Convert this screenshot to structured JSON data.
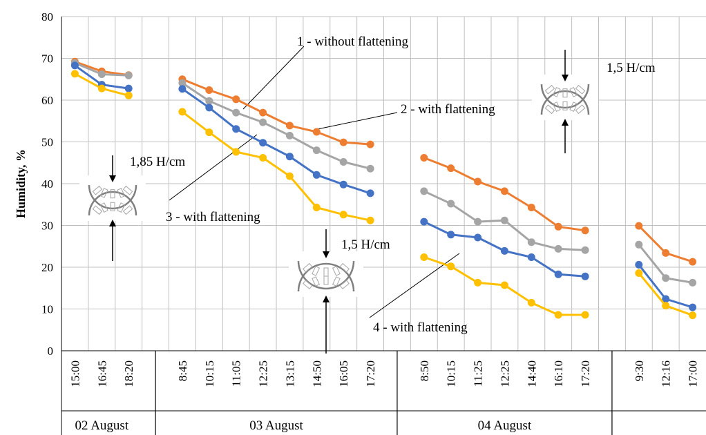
{
  "chart_data": {
    "type": "line",
    "ylabel": "Humidity, %",
    "ylim": [
      0,
      80
    ],
    "yticks": [
      0,
      10,
      20,
      30,
      40,
      50,
      60,
      70,
      80
    ],
    "grid": true,
    "groups": [
      {
        "day": "02 August",
        "times": [
          "15:00",
          "16:45",
          "18:20"
        ]
      },
      {
        "day": "03 August",
        "times": [
          "8:45",
          "10:15",
          "11:05",
          "12:25",
          "13:15",
          "14:50",
          "16:05",
          "17:20"
        ]
      },
      {
        "day": "04 August",
        "times": [
          "8:50",
          "10:15",
          "11:25",
          "12:25",
          "14:40",
          "16:10",
          "17:20"
        ]
      },
      {
        "day": "",
        "times": [
          "9:30",
          "12:16",
          "17:00"
        ]
      }
    ],
    "series": [
      {
        "color": "#ED7D31",
        "groups": [
          [
            69.2,
            66.9,
            66.0
          ],
          [
            65.0,
            62.4,
            60.2,
            57.0,
            53.9,
            52.4,
            49.9,
            49.4
          ],
          [
            46.2,
            43.7,
            40.5,
            38.2,
            34.3,
            29.7,
            28.8
          ],
          [
            29.9,
            23.4,
            21.3
          ]
        ]
      },
      {
        "color": "#A5A5A5",
        "groups": [
          [
            68.9,
            66.2,
            65.9
          ],
          [
            64.1,
            59.8,
            57.0,
            54.7,
            51.5,
            48.0,
            45.2,
            43.6
          ],
          [
            38.2,
            35.2,
            30.9,
            31.2,
            26.0,
            24.4,
            24.1
          ],
          [
            25.4,
            17.4,
            16.3
          ]
        ]
      },
      {
        "color": "#4472C4",
        "groups": [
          [
            68.3,
            63.7,
            62.8
          ],
          [
            62.7,
            58.2,
            53.1,
            49.8,
            46.5,
            42.1,
            39.8,
            37.7
          ],
          [
            30.9,
            27.8,
            27.1,
            23.9,
            22.4,
            18.3,
            17.8
          ],
          [
            20.6,
            12.4,
            10.4
          ]
        ]
      },
      {
        "color": "#FFC000",
        "groups": [
          [
            66.3,
            62.8,
            61.1
          ],
          [
            57.2,
            52.3,
            47.6,
            46.2,
            41.8,
            34.3,
            32.6,
            31.2
          ],
          [
            22.4,
            20.2,
            16.3,
            15.7,
            11.5,
            8.6,
            8.6
          ],
          [
            18.6,
            10.8,
            8.5
          ]
        ]
      }
    ],
    "annotations": [
      {
        "text": "1 - without flattening"
      },
      {
        "text": "2 - with flattening"
      },
      {
        "text": "3 - with flattening"
      },
      {
        "text": "4 - with flattening"
      },
      {
        "text": "1,85 H/cm"
      },
      {
        "text": "1,5 H/cm"
      },
      {
        "text": "1,5 H/cm"
      }
    ]
  }
}
